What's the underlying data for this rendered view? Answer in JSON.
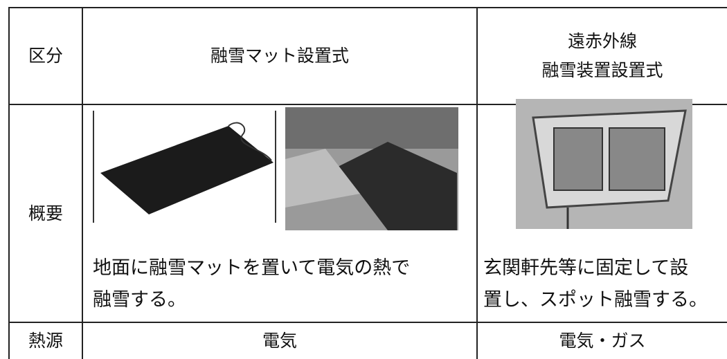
{
  "table": {
    "header": [
      "区分",
      "融雪マット設置式",
      [
        "遠赤外線",
        "融雪装置設置式"
      ]
    ],
    "rows": [
      [
        "概要",
        [
          "地面に融雪マットを置いて電気の熱で",
          "融雪する。"
        ],
        [
          "玄関軒先等に固定して設",
          "置し、スポット融雪する。"
        ]
      ],
      [
        "熱源",
        "電気",
        "電気・ガス"
      ]
    ]
  }
}
